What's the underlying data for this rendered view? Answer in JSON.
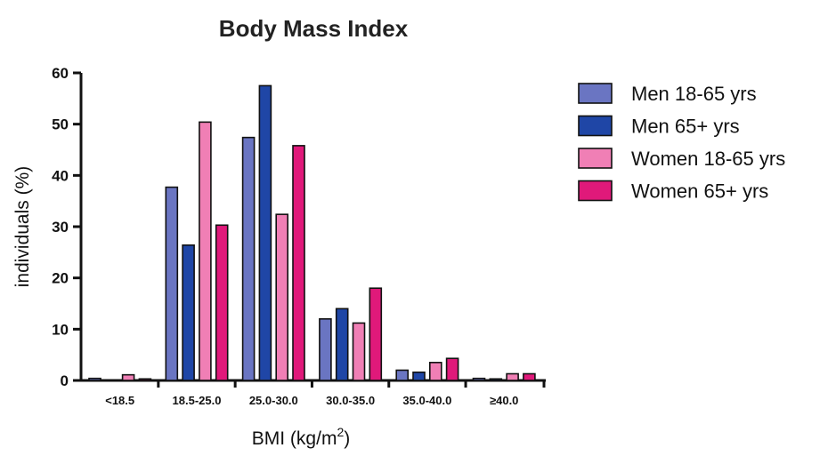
{
  "chart_data": {
    "type": "bar",
    "title": "Body Mass Index",
    "xlabel": "BMI (kg/m",
    "xlabel_superscript": "2",
    "xlabel_suffix": ")",
    "ylabel": "individuals (%)",
    "ylim": [
      0,
      60
    ],
    "yticks": [
      0,
      10,
      20,
      30,
      40,
      50,
      60
    ],
    "categories": [
      "<18.5",
      "18.5-25.0",
      "25.0-30.0",
      "30.0-35.0",
      "35.0-40.0",
      "≥40.0"
    ],
    "series": [
      {
        "name": "Men 18-65 yrs",
        "color": "#6a75c2",
        "values": [
          0.4,
          37.7,
          47.4,
          12.0,
          2.0,
          0.4
        ]
      },
      {
        "name": "Men 65+ yrs",
        "color": "#1f46a6",
        "values": [
          0.0,
          26.4,
          57.5,
          14.0,
          1.6,
          0.3
        ]
      },
      {
        "name": "Women 18-65 yrs",
        "color": "#f07fb5",
        "values": [
          1.1,
          50.4,
          32.4,
          11.2,
          3.5,
          1.3
        ]
      },
      {
        "name": "Women 65+ yrs",
        "color": "#e0197a",
        "values": [
          0.3,
          30.3,
          45.8,
          18.0,
          4.3,
          1.3
        ]
      }
    ],
    "legend_position": "right",
    "grid": false
  }
}
